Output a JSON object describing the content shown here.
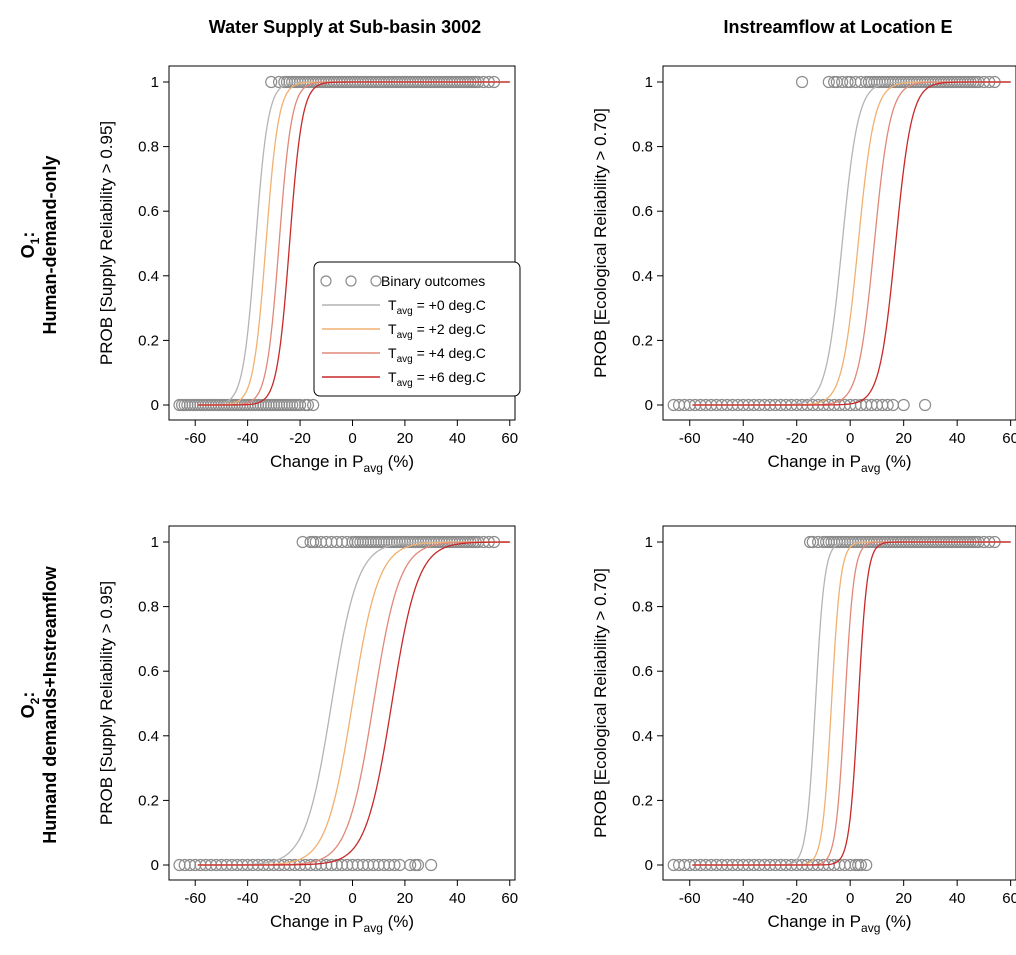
{
  "column_titles": [
    "Water Supply at Sub-basin 3002",
    "Instreamflow at Location E"
  ],
  "row_labels": [
    {
      "prefix": "O",
      "sub": "1",
      "suffix": ":",
      "text": "Human-demand-only"
    },
    {
      "prefix": "O",
      "sub": "2",
      "suffix": ":",
      "text": "Humand demands+Instreamflow"
    }
  ],
  "colors": {
    "points": "#8c8c8c",
    "t0": "#b4b4b4",
    "t2": "#f0b070",
    "t4": "#e08878",
    "t6": "#c82828"
  },
  "legend": {
    "entries": [
      {
        "kind": "points",
        "label": "Binary outcomes"
      },
      {
        "kind": "line",
        "pre": "T",
        "sub": "avg",
        "post": " = +0 deg.C",
        "color": "#b4b4b4"
      },
      {
        "kind": "line",
        "pre": "T",
        "sub": "avg",
        "post": " = +2 deg.C",
        "color": "#f0b070"
      },
      {
        "kind": "line",
        "pre": "T",
        "sub": "avg",
        "post": " = +4 deg.C",
        "color": "#e08878"
      },
      {
        "kind": "line",
        "pre": "T",
        "sub": "avg",
        "post": " = +6 deg.C",
        "color": "#c82828"
      }
    ]
  },
  "chart_data": [
    {
      "type": "scatter",
      "title": "Water Supply at Sub-basin 3002",
      "row": "O1: Human-demand-only",
      "ylabel": "PROB [Supply Reliability > 0.95]",
      "xlabel": {
        "pre": "Change in P",
        "sub": "avg",
        "post": " (%)"
      },
      "xlim": [
        -70,
        62
      ],
      "ylim": [
        0,
        1.02
      ],
      "xticks": [
        "-60",
        "-40",
        "-20",
        "0",
        "20",
        "40",
        "60"
      ],
      "yticks": [
        "0",
        "0.2",
        "0.4",
        "0.6",
        "0.8",
        "1"
      ],
      "legend_position": "right-center",
      "points": {
        "zeros": [
          -66,
          -65,
          -64,
          -63,
          -62,
          -61,
          -60,
          -59,
          -58,
          -57,
          -56,
          -55,
          -54,
          -53,
          -52,
          -51,
          -50,
          -49,
          -48,
          -47,
          -46,
          -45,
          -44,
          -43,
          -42,
          -41,
          -40,
          -39,
          -38,
          -37,
          -36,
          -35,
          -34,
          -33,
          -32,
          -31,
          -30,
          -29,
          -28,
          -27,
          -26,
          -25,
          -24,
          -23,
          -22,
          -21,
          -20,
          -18,
          -17,
          -15
        ],
        "ones": [
          -31,
          -28,
          -26,
          -25,
          -24,
          -23,
          -22,
          -21,
          -20,
          -19,
          -18,
          -17,
          -16,
          -15,
          -14,
          -13,
          -12,
          -11,
          -10,
          -9,
          -8,
          -7,
          -6,
          -5,
          -4,
          -3,
          -2,
          -1,
          0,
          1,
          2,
          3,
          4,
          5,
          6,
          7,
          8,
          9,
          10,
          11,
          12,
          13,
          14,
          15,
          16,
          17,
          18,
          19,
          20,
          21,
          22,
          23,
          24,
          25,
          26,
          27,
          28,
          29,
          30,
          31,
          32,
          33,
          34,
          35,
          36,
          37,
          38,
          39,
          40,
          41,
          42,
          43,
          44,
          45,
          46,
          47,
          48,
          50,
          52,
          54
        ]
      },
      "series": [
        {
          "name": "Tavg = +0 deg.C",
          "midpoint": -37,
          "scale": 2.4
        },
        {
          "name": "Tavg = +2 deg.C",
          "midpoint": -33,
          "scale": 2.4
        },
        {
          "name": "Tavg = +4 deg.C",
          "midpoint": -28,
          "scale": 2.4
        },
        {
          "name": "Tavg = +6 deg.C",
          "midpoint": -24,
          "scale": 2.4
        }
      ],
      "curve_x_range": [
        -59,
        60
      ]
    },
    {
      "type": "scatter",
      "title": "Instreamflow at Location E",
      "row": "O1: Human-demand-only",
      "ylabel": "PROB [Ecological Reliability > 0.70]",
      "xlabel": {
        "pre": "Change in P",
        "sub": "avg",
        "post": " (%)"
      },
      "xlim": [
        -70,
        62
      ],
      "ylim": [
        0,
        1.02
      ],
      "xticks": [
        "-60",
        "-40",
        "-20",
        "0",
        "20",
        "40",
        "60"
      ],
      "yticks": [
        "0",
        "0.2",
        "0.4",
        "0.6",
        "0.8",
        "1"
      ],
      "points": {
        "zeros": [
          -66,
          -64,
          -62,
          -60,
          -58,
          -56,
          -54,
          -52,
          -50,
          -48,
          -46,
          -44,
          -42,
          -40,
          -38,
          -36,
          -34,
          -32,
          -30,
          -28,
          -26,
          -24,
          -22,
          -20,
          -18,
          -16,
          -14,
          -12,
          -10,
          -8,
          -6,
          -4,
          -2,
          0,
          2,
          4,
          6,
          8,
          10,
          12,
          14,
          16,
          20,
          28
        ],
        "ones": [
          -18,
          -8,
          -6,
          -5,
          -3,
          -1,
          0,
          2,
          4,
          6,
          7,
          8,
          9,
          10,
          11,
          12,
          13,
          14,
          15,
          16,
          17,
          18,
          19,
          20,
          21,
          22,
          23,
          24,
          25,
          26,
          27,
          28,
          29,
          30,
          31,
          32,
          33,
          34,
          35,
          36,
          37,
          38,
          39,
          40,
          41,
          42,
          43,
          44,
          45,
          46,
          47,
          48,
          50,
          52,
          54
        ]
      },
      "series": [
        {
          "name": "Tavg = +0 deg.C",
          "midpoint": -3,
          "scale": 3.0
        },
        {
          "name": "Tavg = +2 deg.C",
          "midpoint": 3,
          "scale": 3.0
        },
        {
          "name": "Tavg = +4 deg.C",
          "midpoint": 9,
          "scale": 3.0
        },
        {
          "name": "Tavg = +6 deg.C",
          "midpoint": 17,
          "scale": 3.0
        }
      ],
      "curve_x_range": [
        -59,
        60
      ]
    },
    {
      "type": "scatter",
      "title": "Water Supply at Sub-basin 3002",
      "row": "O2: Humand demands+Instreamflow",
      "ylabel": "PROB [Supply Reliability > 0.95]",
      "xlabel": {
        "pre": "Change in P",
        "sub": "avg",
        "post": " (%)"
      },
      "xlim": [
        -70,
        62
      ],
      "ylim": [
        0,
        1.02
      ],
      "xticks": [
        "-60",
        "-40",
        "-20",
        "0",
        "20",
        "40",
        "60"
      ],
      "yticks": [
        "0",
        "0.2",
        "0.4",
        "0.6",
        "0.8",
        "1"
      ],
      "points": {
        "zeros": [
          -66,
          -64,
          -62,
          -60,
          -58,
          -56,
          -54,
          -52,
          -50,
          -48,
          -46,
          -44,
          -42,
          -40,
          -38,
          -36,
          -34,
          -32,
          -30,
          -28,
          -26,
          -24,
          -22,
          -20,
          -18,
          -16,
          -14,
          -12,
          -10,
          -8,
          -6,
          -4,
          -2,
          0,
          2,
          4,
          6,
          8,
          10,
          12,
          14,
          16,
          18,
          22,
          24,
          25,
          30
        ],
        "ones": [
          -19,
          -16,
          -15,
          -14,
          -12,
          -10,
          -8,
          -6,
          -4,
          -2,
          0,
          1,
          2,
          3,
          4,
          5,
          6,
          7,
          8,
          9,
          10,
          11,
          12,
          13,
          14,
          15,
          16,
          17,
          18,
          19,
          20,
          21,
          22,
          23,
          24,
          25,
          26,
          27,
          28,
          29,
          30,
          31,
          32,
          33,
          34,
          35,
          36,
          37,
          38,
          39,
          40,
          41,
          42,
          43,
          44,
          45,
          46,
          47,
          48,
          50,
          52,
          54
        ]
      },
      "series": [
        {
          "name": "Tavg = +0 deg.C",
          "midpoint": -8,
          "scale": 5.0
        },
        {
          "name": "Tavg = +2 deg.C",
          "midpoint": 0,
          "scale": 5.0
        },
        {
          "name": "Tavg = +4 deg.C",
          "midpoint": 8,
          "scale": 5.0
        },
        {
          "name": "Tavg = +6 deg.C",
          "midpoint": 15,
          "scale": 5.0
        }
      ],
      "curve_x_range": [
        -59,
        60
      ]
    },
    {
      "type": "scatter",
      "title": "Instreamflow at Location E",
      "row": "O2: Humand demands+Instreamflow",
      "ylabel": "PROB [Ecological Reliability > 0.70]",
      "xlabel": {
        "pre": "Change in P",
        "sub": "avg",
        "post": " (%)"
      },
      "xlim": [
        -70,
        62
      ],
      "ylim": [
        0,
        1.02
      ],
      "xticks": [
        "-60",
        "-40",
        "-20",
        "0",
        "20",
        "40",
        "60"
      ],
      "yticks": [
        "0",
        "0.2",
        "0.4",
        "0.6",
        "0.8",
        "1"
      ],
      "points": {
        "zeros": [
          -66,
          -64,
          -62,
          -60,
          -58,
          -56,
          -54,
          -52,
          -50,
          -48,
          -46,
          -44,
          -42,
          -40,
          -38,
          -36,
          -34,
          -32,
          -30,
          -28,
          -26,
          -24,
          -22,
          -20,
          -18,
          -16,
          -14,
          -12,
          -10,
          -8,
          -6,
          -4,
          -2,
          0,
          2,
          3,
          4,
          6
        ],
        "ones": [
          -15,
          -14,
          -12,
          -10,
          -9,
          -8,
          -7,
          -6,
          -5,
          -4,
          -3,
          -2,
          -1,
          0,
          1,
          2,
          3,
          4,
          5,
          6,
          7,
          8,
          9,
          10,
          11,
          12,
          13,
          14,
          15,
          16,
          17,
          18,
          19,
          20,
          21,
          22,
          23,
          24,
          25,
          26,
          27,
          28,
          29,
          30,
          31,
          32,
          33,
          34,
          35,
          36,
          37,
          38,
          39,
          40,
          41,
          42,
          43,
          44,
          45,
          46,
          47,
          48,
          50,
          52,
          54
        ]
      },
      "series": [
        {
          "name": "Tavg = +0 deg.C",
          "midpoint": -13,
          "scale": 1.7
        },
        {
          "name": "Tavg = +2 deg.C",
          "midpoint": -7,
          "scale": 1.7
        },
        {
          "name": "Tavg = +4 deg.C",
          "midpoint": -2,
          "scale": 1.7
        },
        {
          "name": "Tavg = +6 deg.C",
          "midpoint": 3,
          "scale": 1.7
        }
      ],
      "curve_x_range": [
        -59,
        60
      ]
    }
  ]
}
